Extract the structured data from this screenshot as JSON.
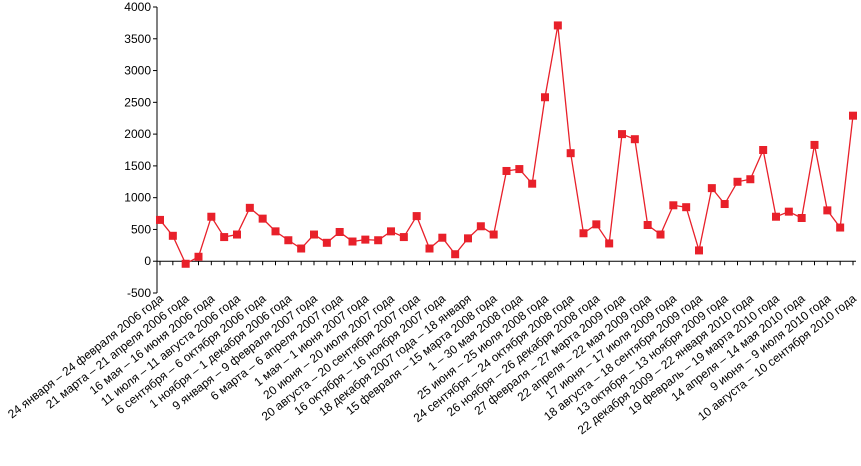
{
  "chart_data": {
    "type": "line",
    "categories": [
      "24 января – 24 февраля 2006 года",
      null,
      "21 марта – 21 апреля 2006 года",
      null,
      "16 мая – 16 июня  2006 года",
      null,
      "11 июля – 11 августа 2006 года",
      null,
      "6 сентября – 6 октября 2006 года",
      null,
      "1 ноября – 1 декабря 2006 года",
      null,
      "9 января – 9 февраля 2007 года",
      null,
      "6 марта – 6 апреля 2007 года",
      null,
      "1 мая – 1 июня 2007 года",
      null,
      "20 июня – 20 июля 2007 года",
      null,
      "20 августа – 20 сентября 2007 года",
      null,
      "16 октября – 16 ноября 2007 года",
      null,
      "18 декабря 2007 года – 18 января",
      null,
      "15 февраля – 15 марта 2008 года",
      null,
      "1 – 30 мая 2008 года",
      null,
      "25 июня – 25 июля 2008 года",
      null,
      "24 сентября – 24 октября 2008 года",
      null,
      "26 ноября – 26 декабря 2008 года",
      null,
      "27 февраля – 27 марта 2009 года",
      null,
      "22 апреля – 22 мая 2009 года",
      null,
      "17 июня – 17 июля 2009 года",
      null,
      "18 августа – 18 сентября 2009 года",
      null,
      "13 октября – 13 ноября 2009 года",
      null,
      "22 декабря 2009 – 22 января 2010 года",
      null,
      "19 февраль – 19 марта 2010 года",
      null,
      "14 апреля – 14 мая 2010 года",
      null,
      "9 июня – 9 июля 2010 года",
      null,
      "10 августа – 10 сентября  2010 года"
    ],
    "series": [
      {
        "color": "#e8202a",
        "values": [
          650,
          400,
          -40,
          70,
          700,
          380,
          420,
          840,
          670,
          470,
          330,
          200,
          420,
          290,
          460,
          310,
          340,
          330,
          470,
          380,
          710,
          200,
          370,
          110,
          360,
          550,
          420,
          1420,
          1450,
          1220,
          2580,
          3710,
          1700,
          440,
          580,
          280,
          2000,
          1920,
          570,
          420,
          880,
          850,
          170,
          1150,
          900,
          1250,
          1290,
          1750,
          700,
          780,
          680,
          1830,
          800,
          530,
          2290
        ]
      }
    ],
    "ylim": [
      -500,
      4000
    ],
    "yticks": [
      -500,
      0,
      500,
      1000,
      1500,
      2000,
      2500,
      3000,
      3500,
      4000
    ],
    "grid": false
  }
}
